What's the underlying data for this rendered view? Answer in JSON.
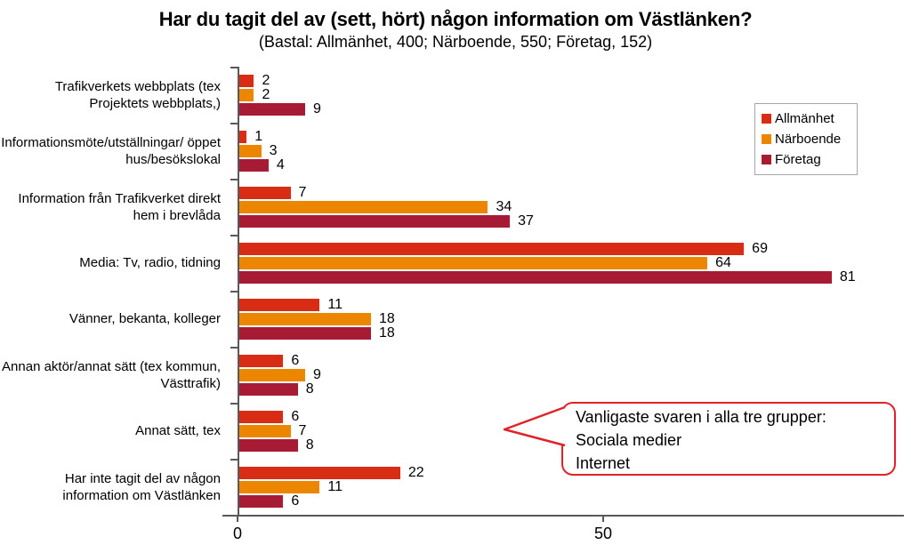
{
  "chart_data": {
    "type": "bar",
    "orientation": "horizontal",
    "title": "Har du tagit del av (sett, hört) någon information om Västlänken?",
    "subtitle": "(Bastal: Allmänhet, 400; Närboende, 550; Företag, 152)",
    "categories": [
      "Trafikverkets webbplats (tex Projektets webbplats,)",
      "Informationsmöte/utställningar/ öppet hus/besökslokal",
      "Information från Trafikverket direkt hem i brevlåda",
      "Media: Tv, radio, tidning",
      "Vänner, bekanta, kolleger",
      "Annan aktör/annat sätt (tex kommun, Västtrafik)",
      "Annat sätt, tex",
      "Har inte tagit del av någon information om Västlänken"
    ],
    "series": [
      {
        "name": "Allmänhet",
        "color": "#d92c15",
        "values": [
          2,
          1,
          7,
          69,
          11,
          6,
          6,
          22
        ]
      },
      {
        "name": "Närboende",
        "color": "#ec8500",
        "values": [
          2,
          3,
          34,
          64,
          18,
          9,
          7,
          11
        ]
      },
      {
        "name": "Företag",
        "color": "#a81b35",
        "values": [
          9,
          4,
          37,
          81,
          18,
          8,
          8,
          6
        ]
      }
    ],
    "xlim": [
      0,
      90
    ],
    "x_ticks": [
      0,
      50
    ],
    "grid": false,
    "legend_position": "top-right",
    "value_labels": true
  },
  "annotation": {
    "lines": [
      "Vanligaste svaren i alla tre grupper:",
      "Sociala medier",
      "Internet"
    ]
  },
  "colors": {
    "axis": "#595959",
    "callout_border": "#df2328",
    "background": "#ffffff",
    "text": "#000000"
  }
}
